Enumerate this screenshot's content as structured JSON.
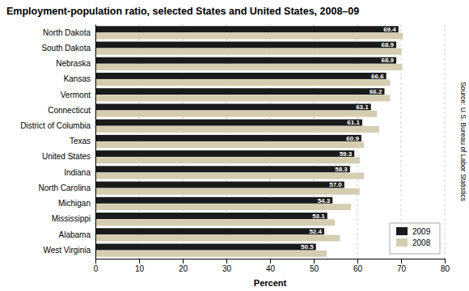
{
  "chart_data": {
    "type": "bar",
    "orientation": "horizontal",
    "title": "Employment-population ratio, selected States and United States, 2008–09",
    "categories": [
      "North Dakota",
      "South Dakota",
      "Nebraska",
      "Kansas",
      "Vermont",
      "Connecticut",
      "District of Columbia",
      "Texas",
      "United States",
      "Indiana",
      "North Carolina",
      "Michigan",
      "Mississippi",
      "Alabama",
      "West Virginia"
    ],
    "series": [
      {
        "name": "2009",
        "color": "#1a1a1a",
        "data_labels": true,
        "values": [
          69.4,
          68.9,
          68.9,
          66.6,
          66.2,
          63.1,
          61.1,
          60.9,
          59.3,
          58.3,
          57.0,
          54.3,
          53.1,
          52.4,
          50.5
        ],
        "value_labels": [
          "69.4",
          "68.9",
          "68.9",
          "66.6",
          "66.2",
          "63.1",
          "61.1",
          "60.9",
          "59.3",
          "58.3",
          "57.0",
          "54.3",
          "53.1",
          "52.4",
          "50.5"
        ]
      },
      {
        "name": "2008",
        "color": "#d4cdb0",
        "values": [
          70.4,
          70.1,
          70.3,
          67.5,
          67.5,
          64.5,
          65.0,
          61.5,
          60.6,
          61.5,
          60.5,
          58.5,
          54.8,
          56.0,
          53.0
        ]
      }
    ],
    "xlabel": "Percent",
    "xlim": [
      0,
      80
    ],
    "xticks": [
      0,
      10,
      20,
      30,
      40,
      50,
      60,
      70,
      80
    ],
    "grid": true,
    "legend": "lower right",
    "annotations": [
      "Source: U.S. Bureau of Labor Statistics"
    ]
  }
}
